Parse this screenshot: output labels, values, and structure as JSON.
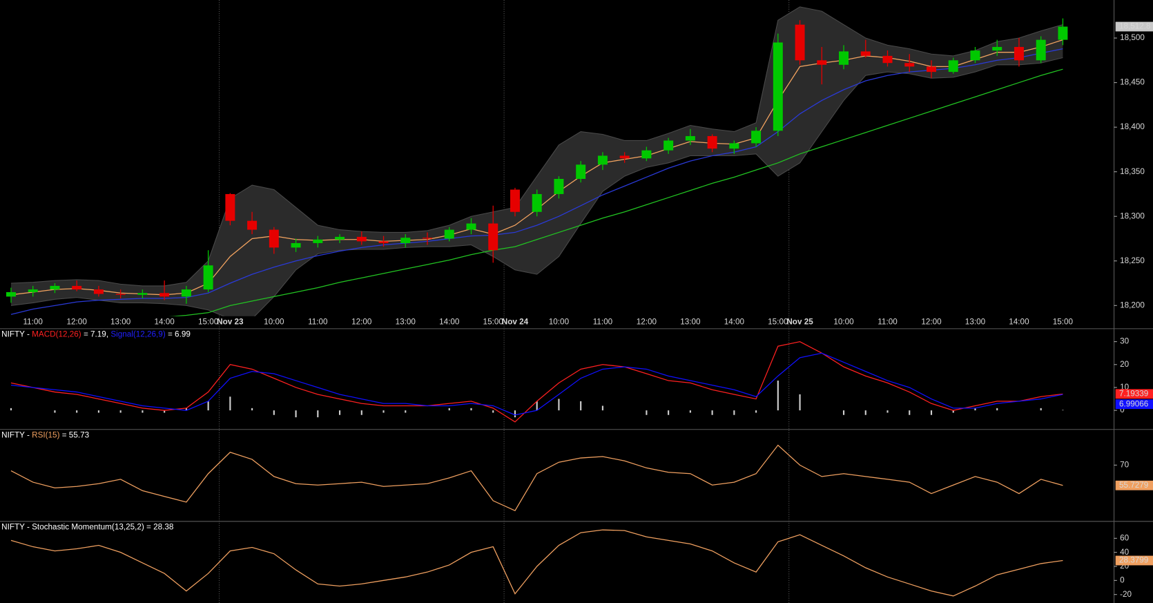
{
  "chart_data": [
    {
      "type": "candlestick",
      "categories": [
        null,
        "11:00",
        null,
        "12:00",
        null,
        "13:00",
        null,
        "14:00",
        null,
        "15:00",
        "Nov 23",
        null,
        "10:00",
        null,
        "11:00",
        null,
        "12:00",
        null,
        "13:00",
        null,
        "14:00",
        null,
        "15:00",
        "Nov 24",
        null,
        "10:00",
        null,
        "11:00",
        null,
        "12:00",
        null,
        "13:00",
        null,
        "14:00",
        null,
        "15:00",
        "Nov 25",
        null,
        "10:00",
        null,
        "11:00",
        null,
        "12:00",
        null,
        "13:00",
        null,
        "14:00",
        null,
        "15:00"
      ],
      "open": [
        18210,
        18215,
        18218,
        18222,
        18218,
        18213,
        18212,
        18214,
        18210,
        18218,
        18325,
        18295,
        18285,
        18265,
        18270,
        18274,
        18277,
        18272,
        18270,
        18276,
        18275,
        18285,
        18292,
        18330,
        18305,
        18325,
        18342,
        18358,
        18368,
        18365,
        18374,
        18385,
        18390,
        18376,
        18382,
        18396,
        18515,
        18475,
        18470,
        18485,
        18480,
        18472,
        18468,
        18462,
        18475,
        18486,
        18490,
        18475,
        18498
      ],
      "high": [
        18220,
        18222,
        18225,
        18228,
        18222,
        18218,
        18218,
        18228,
        18222,
        18262,
        18326,
        18305,
        18288,
        18275,
        18278,
        18280,
        18283,
        18278,
        18280,
        18282,
        18288,
        18298,
        18312,
        18332,
        18330,
        18345,
        18362,
        18372,
        18372,
        18378,
        18388,
        18398,
        18392,
        18385,
        18400,
        18505,
        18520,
        18490,
        18492,
        18498,
        18486,
        18482,
        18475,
        18478,
        18490,
        18498,
        18500,
        18502,
        18522
      ],
      "low": [
        18203,
        18210,
        18214,
        18216,
        18210,
        18208,
        18208,
        18206,
        18202,
        18215,
        18290,
        18280,
        18258,
        18260,
        18265,
        18270,
        18268,
        18266,
        18265,
        18268,
        18272,
        18280,
        18248,
        18300,
        18300,
        18320,
        18338,
        18352,
        18360,
        18362,
        18370,
        18380,
        18372,
        18370,
        18378,
        18390,
        18470,
        18448,
        18465,
        18478,
        18468,
        18462,
        18455,
        18460,
        18472,
        18480,
        18468,
        18472,
        18492
      ],
      "close": [
        18215,
        18218,
        18222,
        18218,
        18213,
        18212,
        18214,
        18210,
        18218,
        18245,
        18295,
        18285,
        18265,
        18270,
        18274,
        18277,
        18272,
        18270,
        18276,
        18275,
        18285,
        18292,
        18262,
        18305,
        18325,
        18342,
        18358,
        18368,
        18365,
        18374,
        18385,
        18390,
        18376,
        18382,
        18396,
        18495,
        18475,
        18470,
        18485,
        18480,
        18472,
        18468,
        18462,
        18475,
        18486,
        18490,
        18475,
        18498,
        18512.8
      ],
      "last_label": "18,512.8",
      "box_color": "#c8c8c8",
      "box_text": "#000000",
      "up_color": "#00c800",
      "down_color": "#e60000",
      "band": {
        "color": "#2b2b2b",
        "edge": "#4a4a4a",
        "upper": [
          18225,
          18226,
          18228,
          18229,
          18228,
          18224,
          18222,
          18222,
          18226,
          18250,
          18320,
          18335,
          18330,
          18310,
          18290,
          18285,
          18283,
          18282,
          18282,
          18284,
          18290,
          18300,
          18305,
          18310,
          18345,
          18380,
          18395,
          18392,
          18385,
          18385,
          18393,
          18402,
          18398,
          18395,
          18405,
          18520,
          18535,
          18530,
          18515,
          18500,
          18492,
          18488,
          18482,
          18480,
          18486,
          18496,
          18500,
          18508,
          18515
        ],
        "lower": [
          18200,
          18203,
          18207,
          18209,
          18206,
          18203,
          18203,
          18202,
          18200,
          18195,
          18185,
          18185,
          18210,
          18240,
          18258,
          18262,
          18263,
          18263,
          18265,
          18266,
          18266,
          18268,
          18255,
          18240,
          18235,
          18255,
          18292,
          18328,
          18345,
          18355,
          18360,
          18368,
          18368,
          18368,
          18370,
          18345,
          18360,
          18395,
          18430,
          18458,
          18462,
          18460,
          18455,
          18456,
          18462,
          18470,
          18470,
          18472,
          18478
        ]
      },
      "series": [
        {
          "color": "#f4a460",
          "values": [
            18212,
            18215,
            18218,
            18219,
            18217,
            18214,
            18213,
            18212,
            18214,
            18225,
            18255,
            18275,
            18278,
            18274,
            18273,
            18274,
            18274,
            18272,
            18273,
            18274,
            18279,
            18286,
            18280,
            18290,
            18308,
            18328,
            18345,
            18360,
            18364,
            18368,
            18376,
            18384,
            18382,
            18381,
            18388,
            18430,
            18468,
            18472,
            18475,
            18480,
            18478,
            18474,
            18468,
            18468,
            18476,
            18484,
            18484,
            18490,
            18498
          ]
        },
        {
          "color": "#2a3ad8",
          "values": [
            18190,
            18196,
            18200,
            18204,
            18206,
            18207,
            18208,
            18208,
            18209,
            18214,
            18225,
            18235,
            18243,
            18250,
            18256,
            18261,
            18265,
            18268,
            18270,
            18272,
            18275,
            18278,
            18279,
            18282,
            18290,
            18300,
            18312,
            18324,
            18334,
            18344,
            18354,
            18362,
            18368,
            18372,
            18378,
            18395,
            18415,
            18430,
            18442,
            18452,
            18458,
            18462,
            18464,
            18466,
            18470,
            18475,
            18478,
            18483,
            18488
          ]
        },
        {
          "color": "#22c422",
          "values": [
            18168,
            18171,
            18174,
            18176,
            18179,
            18181,
            18184,
            18187,
            18189,
            18192,
            18200,
            18205,
            18210,
            18215,
            18220,
            18226,
            18231,
            18236,
            18241,
            18246,
            18251,
            18257,
            18262,
            18266,
            18274,
            18282,
            18290,
            18298,
            18305,
            18313,
            18321,
            18329,
            18337,
            18344,
            18352,
            18360,
            18370,
            18378,
            18386,
            18394,
            18402,
            18410,
            18418,
            18426,
            18434,
            18442,
            18450,
            18458,
            18465
          ]
        }
      ],
      "ylim": [
        18188,
        18541
      ],
      "yticks": [
        {
          "value": 18200,
          "label": "18,200"
        },
        {
          "value": 18250,
          "label": "18,250"
        },
        {
          "value": 18300,
          "label": "18,300"
        },
        {
          "value": 18350,
          "label": "18,350"
        },
        {
          "value": 18400,
          "label": "18,400"
        },
        {
          "value": 18450,
          "label": "18,450"
        },
        {
          "value": 18500,
          "label": "18,500"
        }
      ]
    },
    {
      "type": "line",
      "title_parts": [
        {
          "text": "NIFTY - ",
          "color": "#ffffff"
        },
        {
          "text": "MACD(12,26)",
          "color": "#ff2020"
        },
        {
          "text": " = 7.19, ",
          "color": "#ffffff"
        },
        {
          "text": "Signal(12,26,9)",
          "color": "#2020ff"
        },
        {
          "text": " = 6.99",
          "color": "#ffffff"
        }
      ],
      "histogram": {
        "color": "#d0d0d0",
        "values": [
          1,
          0,
          -1,
          -1,
          -1,
          -1,
          -1,
          -1,
          1,
          4,
          6,
          1,
          -2,
          -3,
          -3,
          -2,
          -2,
          -1,
          -1,
          0,
          1,
          1,
          -1,
          -3,
          4,
          5,
          4,
          2,
          0,
          -2,
          -2,
          -1,
          -2,
          -2,
          -1,
          13,
          7,
          0,
          -2,
          -2,
          -1,
          -2,
          -2,
          -1,
          1,
          1,
          0,
          1,
          0.2
        ]
      },
      "series": [
        {
          "color": "#ff2020",
          "box_text": "#ffffff",
          "last_label": "7.19339",
          "values": [
            12,
            10,
            8,
            7,
            5,
            3,
            1,
            0,
            1,
            8,
            20,
            18,
            14,
            10,
            7,
            5,
            3,
            2,
            2,
            2,
            3,
            4,
            1,
            -5,
            4,
            12,
            18,
            20,
            19,
            16,
            13,
            12,
            9,
            7,
            5,
            28,
            30,
            25,
            19,
            15,
            12,
            8,
            3,
            0,
            2,
            4,
            4,
            6,
            7.19339
          ]
        },
        {
          "color": "#1010ff",
          "box_text": "#ffffff",
          "last_label": "6.99066",
          "values": [
            11,
            10,
            9,
            8,
            6,
            4,
            2,
            1,
            0,
            4,
            14,
            17,
            16,
            13,
            10,
            7,
            5,
            3,
            3,
            2,
            2,
            3,
            2,
            -2,
            0,
            7,
            14,
            18,
            19,
            18,
            15,
            13,
            11,
            9,
            6,
            15,
            23,
            25,
            21,
            17,
            13,
            10,
            5,
            1,
            1,
            3,
            4,
            5,
            6.99066
          ]
        }
      ],
      "ylim": [
        -8,
        35
      ],
      "yticks": [
        0,
        10,
        20,
        30
      ]
    },
    {
      "type": "line",
      "title_parts": [
        {
          "text": "NIFTY - ",
          "color": "#ffffff"
        },
        {
          "text": "RSI(15)",
          "color": "#f0a060"
        },
        {
          "text": " = 55.73",
          "color": "#ffffff"
        }
      ],
      "series": [
        {
          "color": "#f0a060",
          "box_text": "#000000",
          "last_label": "55.7279",
          "values": [
            66,
            58,
            54,
            55,
            57,
            60,
            52,
            48,
            44,
            64,
            79,
            74,
            62,
            57,
            56,
            57,
            58,
            55,
            56,
            57,
            61,
            66,
            45,
            38,
            64,
            72,
            75,
            76,
            73,
            68,
            65,
            64,
            56,
            58,
            64,
            84,
            70,
            62,
            64,
            62,
            60,
            58,
            50,
            56,
            62,
            58,
            50,
            60,
            55.7279
          ]
        }
      ],
      "ylim": [
        31,
        94
      ],
      "yticks": [
        70
      ]
    },
    {
      "type": "line",
      "title_parts": [
        {
          "text": "NIFTY - Stochastic Momentum(13,25,2) = 28.38",
          "color": "#ffffff"
        }
      ],
      "series": [
        {
          "color": "#f0a060",
          "box_text": "#000000",
          "last_label": "28.3799",
          "values": [
            57,
            48,
            42,
            45,
            50,
            40,
            25,
            10,
            -15,
            10,
            42,
            47,
            38,
            15,
            -5,
            -8,
            -5,
            0,
            5,
            12,
            22,
            40,
            48,
            -19,
            20,
            50,
            68,
            72,
            71,
            62,
            57,
            52,
            42,
            25,
            12,
            55,
            65,
            50,
            35,
            18,
            5,
            -5,
            -15,
            -22,
            -8,
            8,
            16,
            24,
            28.3799
          ]
        }
      ],
      "ylim": [
        -30,
        82
      ],
      "yticks": [
        -20,
        0,
        20,
        40,
        60
      ]
    }
  ]
}
